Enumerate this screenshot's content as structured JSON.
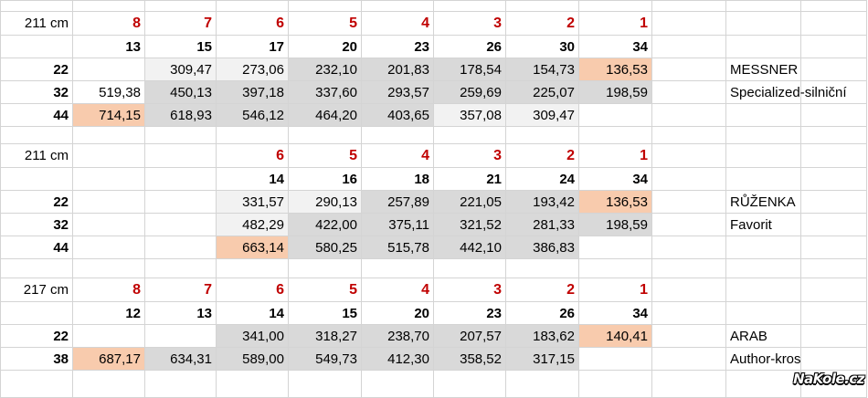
{
  "colors": {
    "grey": "#d9d9d9",
    "light": "#f2f2f2",
    "peach": "#f8cbad",
    "gear_red": "#c00000"
  },
  "sections": [
    {
      "label": "211 cm",
      "gears": [
        "8",
        "7",
        "6",
        "5",
        "4",
        "3",
        "2",
        "1"
      ],
      "cogs": [
        "13",
        "15",
        "17",
        "20",
        "23",
        "26",
        "30",
        "34"
      ],
      "rows": [
        {
          "chainring": "22",
          "bike": "MESSNER",
          "values": [
            "",
            "309,47",
            "273,06",
            "232,10",
            "201,83",
            "178,54",
            "154,73",
            "136,53"
          ],
          "fills": [
            "",
            "light",
            "light",
            "grey",
            "grey",
            "grey",
            "grey",
            "peach"
          ]
        },
        {
          "chainring": "32",
          "bike": "Specialized-silniční",
          "values": [
            "519,38",
            "450,13",
            "397,18",
            "337,60",
            "293,57",
            "259,69",
            "225,07",
            "198,59"
          ],
          "fills": [
            "",
            "grey",
            "grey",
            "grey",
            "grey",
            "grey",
            "grey",
            "grey"
          ]
        },
        {
          "chainring": "44",
          "bike": "",
          "values": [
            "714,15",
            "618,93",
            "546,12",
            "464,20",
            "403,65",
            "357,08",
            "309,47",
            ""
          ],
          "fills": [
            "peach",
            "grey",
            "grey",
            "grey",
            "grey",
            "light",
            "light",
            ""
          ]
        }
      ]
    },
    {
      "label": "211 cm",
      "gears": [
        "",
        "",
        "6",
        "5",
        "4",
        "3",
        "2",
        "1"
      ],
      "cogs": [
        "",
        "",
        "14",
        "16",
        "18",
        "21",
        "24",
        "34"
      ],
      "rows": [
        {
          "chainring": "22",
          "bike": "RŮŽENKA",
          "values": [
            "",
            "",
            "331,57",
            "290,13",
            "257,89",
            "221,05",
            "193,42",
            "136,53"
          ],
          "fills": [
            "",
            "",
            "light",
            "light",
            "grey",
            "grey",
            "grey",
            "peach"
          ]
        },
        {
          "chainring": "32",
          "bike": "Favorit",
          "values": [
            "",
            "",
            "482,29",
            "422,00",
            "375,11",
            "321,52",
            "281,33",
            "198,59"
          ],
          "fills": [
            "",
            "",
            "light",
            "grey",
            "grey",
            "grey",
            "grey",
            "grey"
          ]
        },
        {
          "chainring": "44",
          "bike": "",
          "values": [
            "",
            "",
            "663,14",
            "580,25",
            "515,78",
            "442,10",
            "386,83",
            ""
          ],
          "fills": [
            "",
            "",
            "peach",
            "grey",
            "grey",
            "grey",
            "grey",
            ""
          ]
        }
      ]
    },
    {
      "label": "217 cm",
      "gears": [
        "8",
        "7",
        "6",
        "5",
        "4",
        "3",
        "2",
        "1"
      ],
      "cogs": [
        "12",
        "13",
        "14",
        "15",
        "20",
        "23",
        "26",
        "34"
      ],
      "rows": [
        {
          "chainring": "22",
          "bike": "ARAB",
          "values": [
            "",
            "",
            "341,00",
            "318,27",
            "238,70",
            "207,57",
            "183,62",
            "140,41"
          ],
          "fills": [
            "",
            "",
            "grey",
            "grey",
            "grey",
            "grey",
            "grey",
            "peach"
          ]
        },
        {
          "chainring": "38",
          "bike": "Author-kros",
          "values": [
            "687,17",
            "634,31",
            "589,00",
            "549,73",
            "412,30",
            "358,52",
            "317,15",
            ""
          ],
          "fills": [
            "peach",
            "grey",
            "grey",
            "grey",
            "grey",
            "grey",
            "grey",
            ""
          ]
        }
      ]
    }
  ],
  "watermark": "NaKole.cz"
}
